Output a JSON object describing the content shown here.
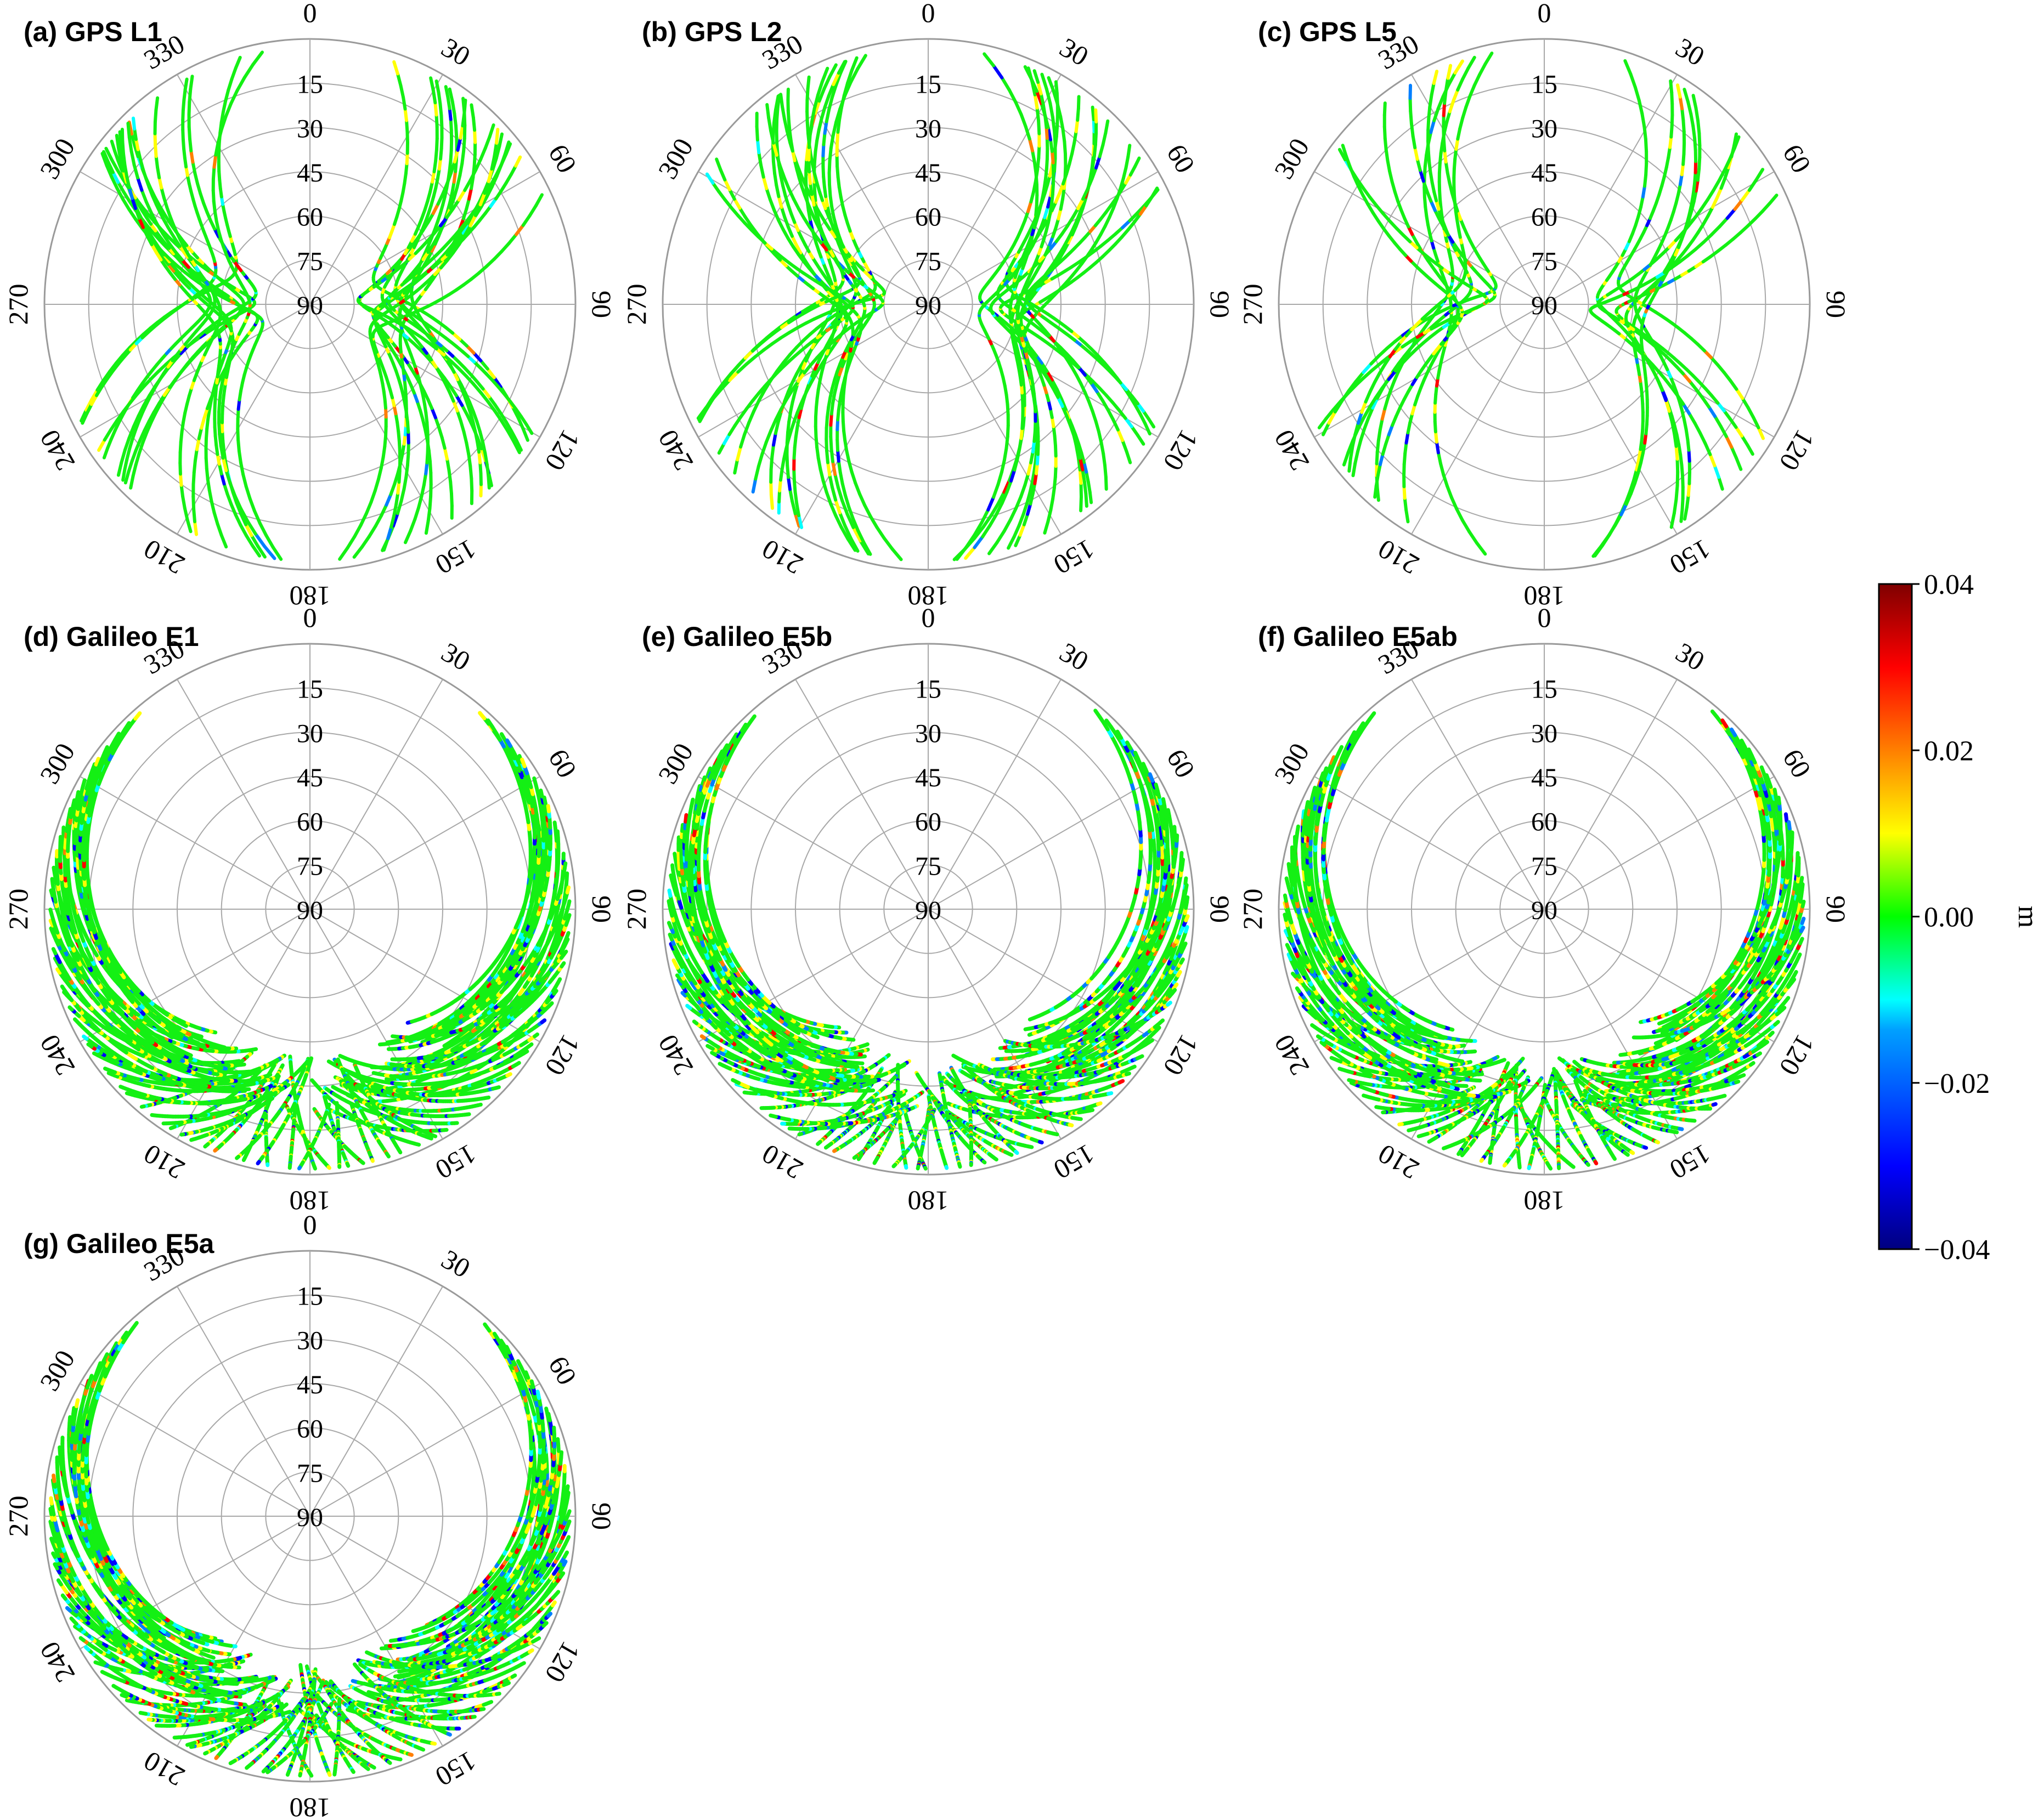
{
  "chart_data": {
    "type": "polar-skyplot",
    "description_units": "m",
    "azimuth_ticks": [
      "0",
      "30",
      "60",
      "90",
      "120",
      "150",
      "180",
      "210",
      "240",
      "270",
      "300",
      "330"
    ],
    "elevation_ticks": [
      "15",
      "30",
      "45",
      "60",
      "75",
      "90"
    ],
    "panels": [
      {
        "title": "(a) GPS L1",
        "system": "GPS",
        "tracks": 30,
        "fill": "sparse",
        "red_frac": 0.02,
        "blue_frac": 0.04
      },
      {
        "title": "(b) GPS L2",
        "system": "GPS",
        "tracks": 30,
        "fill": "sparse",
        "red_frac": 0.04,
        "blue_frac": 0.05
      },
      {
        "title": "(c) GPS L5",
        "system": "GPS",
        "tracks": 18,
        "fill": "sparse",
        "red_frac": 0.03,
        "blue_frac": 0.04
      },
      {
        "title": "(d) Galileo E1",
        "system": "Galileo",
        "tracks": 95,
        "fill": "dense",
        "red_frac": 0.03,
        "blue_frac": 0.08
      },
      {
        "title": "(e) Galileo E5b",
        "system": "Galileo",
        "tracks": 95,
        "fill": "dense",
        "red_frac": 0.06,
        "blue_frac": 0.14
      },
      {
        "title": "(f) Galileo E5ab",
        "system": "Galileo",
        "tracks": 95,
        "fill": "dense",
        "red_frac": 0.06,
        "blue_frac": 0.13
      },
      {
        "title": "(g) Galileo E5a",
        "system": "Galileo",
        "tracks": 95,
        "fill": "dense",
        "red_frac": 0.07,
        "blue_frac": 0.15
      }
    ],
    "colorbar": {
      "label": "m",
      "min": -0.04,
      "max": 0.04,
      "ticks": [
        "0.04",
        "0.02",
        "0.00",
        "−0.02",
        "−0.04"
      ],
      "colormap": "jet",
      "colors": [
        "#00007f",
        "#0000ff",
        "#007fff",
        "#00ffff",
        "#00ff00",
        "#ffff00",
        "#ff7f00",
        "#ff0000",
        "#7f0000"
      ]
    }
  }
}
